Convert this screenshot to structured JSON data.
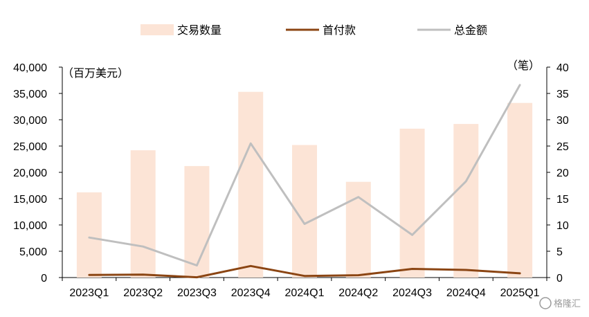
{
  "chart_data": {
    "type": "bar",
    "categories": [
      "2023Q1",
      "2023Q2",
      "2023Q3",
      "2023Q4",
      "2024Q1",
      "2024Q2",
      "2024Q3",
      "2024Q4",
      "2025Q1"
    ],
    "series": [
      {
        "name": "交易数量",
        "type": "bar",
        "axis": "right",
        "color": "#FCE4D6",
        "values": [
          16.2,
          24.2,
          21.2,
          35.3,
          25.2,
          18.2,
          28.3,
          29.2,
          33.2
        ]
      },
      {
        "name": "首付款",
        "type": "line",
        "axis": "left",
        "color": "#8B4513",
        "values": [
          500,
          550,
          50,
          2200,
          300,
          450,
          1650,
          1450,
          800
        ]
      },
      {
        "name": "总金额",
        "type": "line",
        "axis": "left",
        "color": "#BFBFBF",
        "values": [
          7600,
          5900,
          2300,
          25500,
          10200,
          15300,
          8100,
          18300,
          36600
        ]
      }
    ],
    "y_left": {
      "label": "（百万美元）",
      "ylim": [
        0,
        40000
      ],
      "ticks": [
        "0",
        "5,000",
        "10,000",
        "15,000",
        "20,000",
        "25,000",
        "30,000",
        "35,000",
        "40,000"
      ]
    },
    "y_right": {
      "label": "（笔）",
      "ylim": [
        0,
        40
      ],
      "ticks": [
        "0",
        "5",
        "10",
        "15",
        "20",
        "25",
        "30",
        "35",
        "40"
      ]
    },
    "grid": false,
    "legend_position": "top-center"
  },
  "watermark": "格隆汇"
}
